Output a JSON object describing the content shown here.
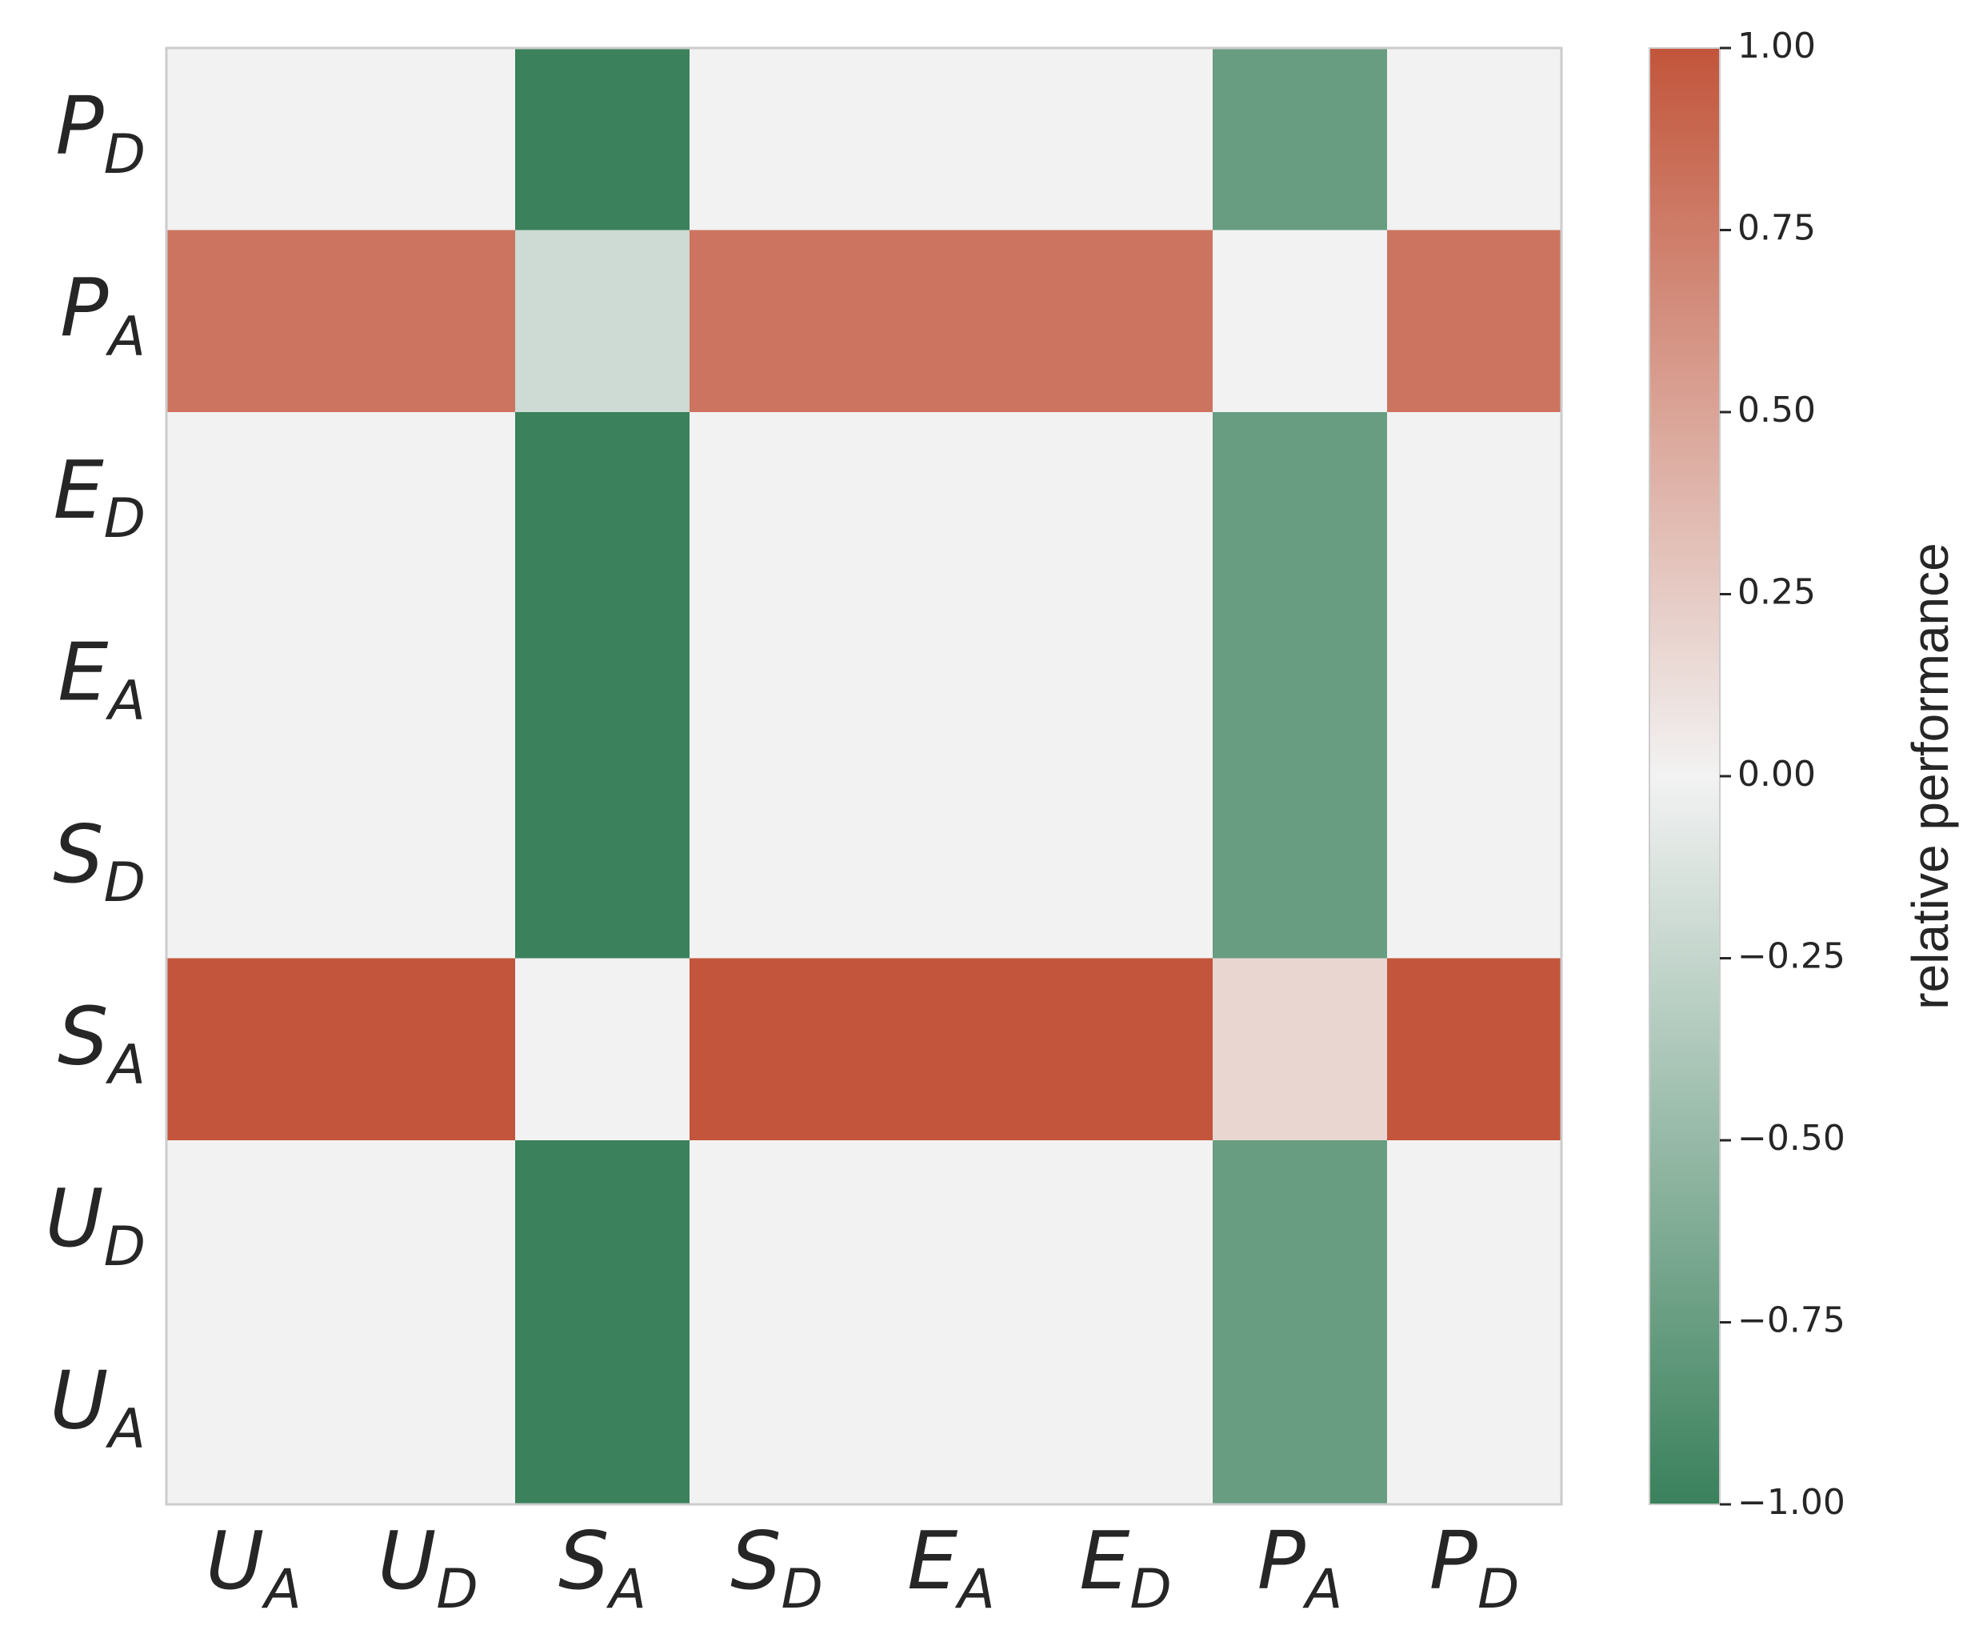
{
  "chart_data": {
    "type": "heatmap",
    "x_categories": [
      {
        "main": "U",
        "sub": "A"
      },
      {
        "main": "U",
        "sub": "D"
      },
      {
        "main": "S",
        "sub": "A"
      },
      {
        "main": "S",
        "sub": "D"
      },
      {
        "main": "E",
        "sub": "A"
      },
      {
        "main": "E",
        "sub": "D"
      },
      {
        "main": "P",
        "sub": "A"
      },
      {
        "main": "P",
        "sub": "D"
      }
    ],
    "y_categories": [
      {
        "main": "P",
        "sub": "D"
      },
      {
        "main": "P",
        "sub": "A"
      },
      {
        "main": "E",
        "sub": "D"
      },
      {
        "main": "E",
        "sub": "A"
      },
      {
        "main": "S",
        "sub": "D"
      },
      {
        "main": "S",
        "sub": "A"
      },
      {
        "main": "U",
        "sub": "D"
      },
      {
        "main": "U",
        "sub": "A"
      }
    ],
    "values": [
      [
        0,
        0,
        -1.0,
        0,
        0,
        0,
        -0.75,
        0
      ],
      [
        0.8,
        0.8,
        -0.2,
        0.8,
        0.8,
        0.8,
        0,
        0.8
      ],
      [
        0,
        0,
        -1.0,
        0,
        0,
        0,
        -0.75,
        0
      ],
      [
        0,
        0,
        -1.0,
        0,
        0,
        0,
        -0.75,
        0
      ],
      [
        0,
        0,
        -1.0,
        0,
        0,
        0,
        -0.75,
        0
      ],
      [
        1.0,
        1.0,
        0,
        1.0,
        1.0,
        1.0,
        0.18,
        1.0
      ],
      [
        0,
        0,
        -1.0,
        0,
        0,
        0,
        -0.75,
        0
      ],
      [
        0,
        0,
        -1.0,
        0,
        0,
        0,
        -0.75,
        0
      ]
    ],
    "colorbar": {
      "label": "relative performance",
      "vmin": -1.0,
      "vmax": 1.0,
      "ticks": [
        "1.00",
        "0.75",
        "0.50",
        "0.25",
        "0.00",
        "−0.25",
        "−0.50",
        "−0.75",
        "−1.00"
      ],
      "tick_values": [
        1.0,
        0.75,
        0.5,
        0.25,
        0.0,
        -0.25,
        -0.5,
        -0.75,
        -1.0
      ],
      "colors": {
        "low": "#3a815c",
        "mid": "#f2f2f2",
        "high": "#c2553b"
      }
    }
  }
}
